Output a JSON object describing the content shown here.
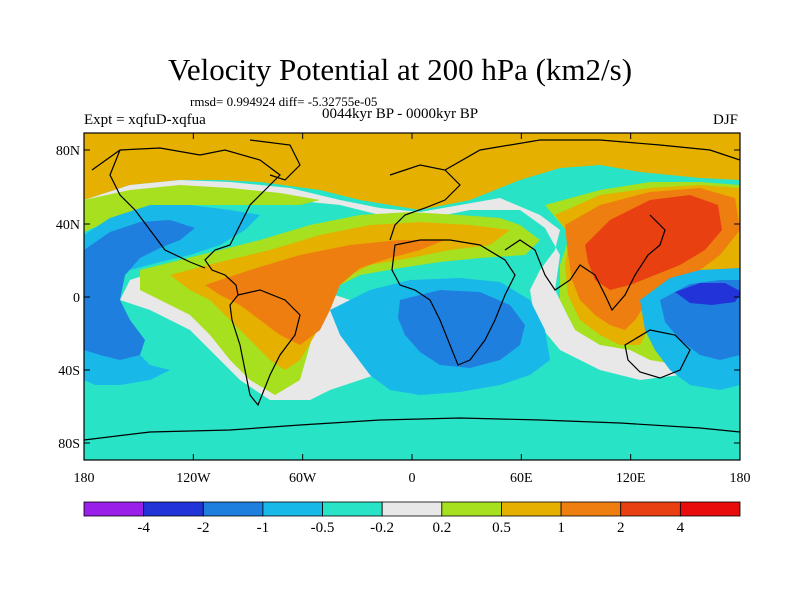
{
  "title": "Velocity Potential at 200 hPa (km2/s)",
  "stats": "rmsd= 0.994924 diff= -5.32755e-05",
  "left_label": "Expt = xqfuD-xqfua",
  "center_label": "0044kyr BP - 0000kyr BP",
  "right_label": "DJF",
  "lat_labels": [
    "80N",
    "40N",
    "0",
    "40S",
    "80S"
  ],
  "lon_labels": [
    "180",
    "120W",
    "60W",
    "0",
    "60E",
    "120E",
    "180"
  ],
  "colorbar": {
    "colors": [
      "#9a1fe8",
      "#2233d8",
      "#1f7fdf",
      "#18b8e8",
      "#29e3c6",
      "#e8e8e8",
      "#a6e01f",
      "#e6b000",
      "#ee7e10",
      "#e84010",
      "#e80c0c"
    ],
    "labels": [
      "-4",
      "-2",
      "-1",
      "-0.5",
      "-0.2",
      "0.2",
      "0.5",
      "1",
      "2",
      "4"
    ]
  }
}
